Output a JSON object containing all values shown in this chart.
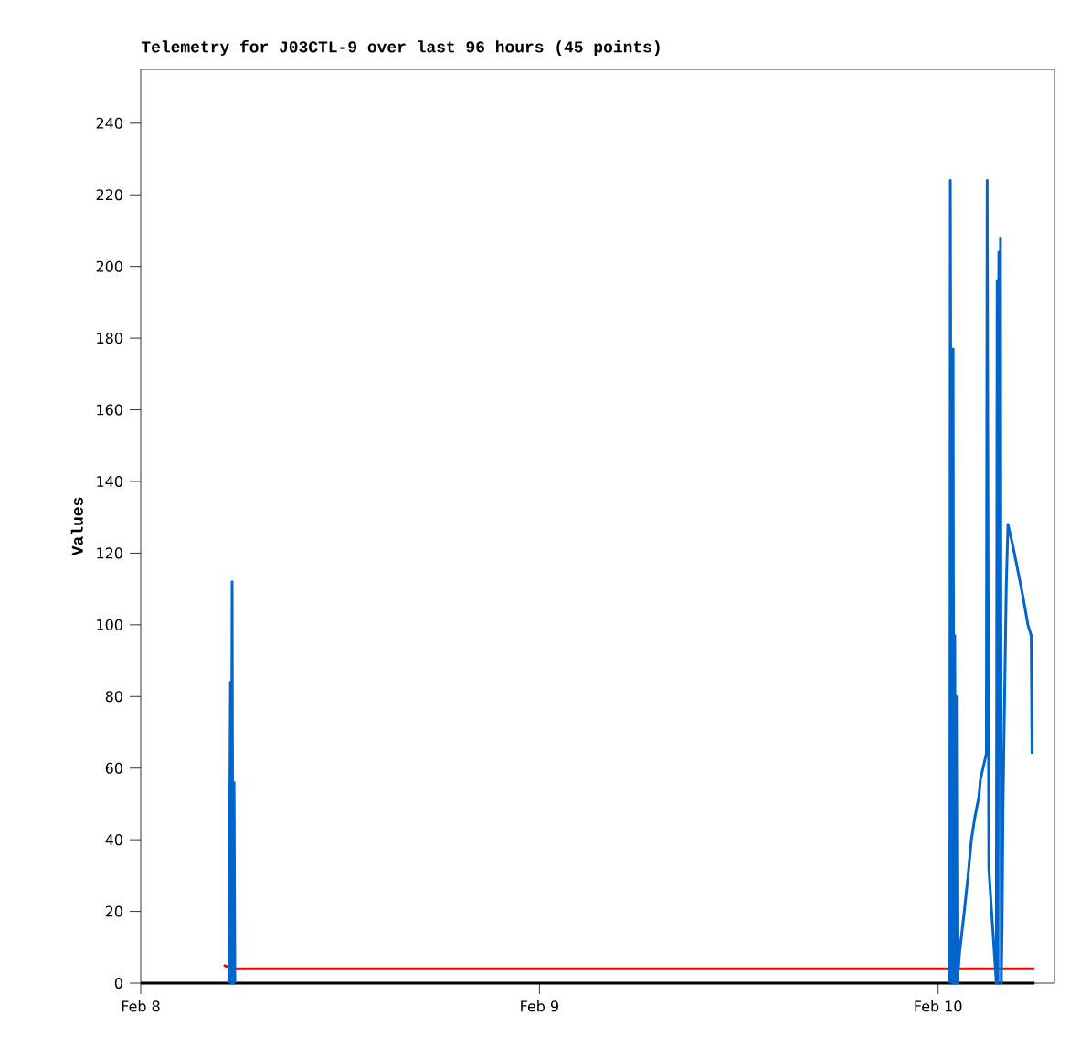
{
  "chart_data": {
    "type": "line",
    "title": "Telemetry for J03CTL-9 over last 96 hours (45 points)",
    "ylabel": "Values",
    "xlim": [
      "--02-08T00:00",
      "--02-10T07:00"
    ],
    "ylim": [
      0,
      255
    ],
    "xticks": [
      {
        "value": "--02-08",
        "label": "Feb 8"
      },
      {
        "value": "--02-09",
        "label": "Feb 9"
      },
      {
        "value": "--02-10",
        "label": "Feb 10"
      }
    ],
    "yticks": [
      0,
      20,
      40,
      60,
      80,
      100,
      120,
      140,
      160,
      180,
      200,
      220,
      240
    ],
    "grid": false,
    "legend": false,
    "series": [
      {
        "color": "#000000",
        "x": [
          "--02-08T00:00",
          "--02-10T05:48"
        ],
        "values": [
          0,
          0
        ]
      },
      {
        "color": "#ff0000",
        "x": [
          "--02-08T05:00",
          "--02-08T05:30",
          "--02-10T05:48"
        ],
        "values": [
          5,
          4,
          4
        ]
      },
      {
        "color": "#0066cc",
        "x": [
          "--02-08T05:18",
          "--02-08T05:20",
          "--02-08T05:24",
          "--02-08T05:27",
          "--02-08T05:30",
          "--02-08T05:33",
          "--02-08T05:37",
          "--02-08T05:40",
          "--02-09T03:00",
          "--02-10T00:42",
          "--02-10T00:44",
          "--02-10T00:47",
          "--02-10T00:51",
          "--02-10T00:54",
          "--02-10T00:57",
          "--02-10T01:00",
          "--02-10T01:03",
          "--02-10T01:06",
          "--02-10T01:09",
          "--02-10T01:18",
          "--02-10T01:33",
          "--02-10T01:48",
          "--02-10T02:00",
          "--02-10T02:12",
          "--02-10T02:27",
          "--02-10T02:33",
          "--02-10T02:45",
          "--02-10T02:54",
          "--02-10T02:57",
          "--02-10T03:03",
          "--02-10T03:30",
          "--02-10T03:33",
          "--02-10T03:36",
          "--02-10T03:39",
          "--02-10T03:42",
          "--02-10T03:45",
          "--02-10T03:48",
          "--02-10T03:51",
          "--02-10T03:54",
          "--02-10T04:00",
          "--02-10T04:06",
          "--02-10T04:12",
          "--02-10T04:30",
          "--02-10T04:48",
          "--02-10T05:06",
          "--02-10T05:24",
          "--02-10T05:36",
          "--02-10T05:39"
        ],
        "values": [
          0,
          28,
          84,
          0,
          112,
          0,
          56,
          0,
          null,
          0,
          224,
          113,
          0,
          177,
          0,
          97,
          0,
          80,
          0,
          9,
          19,
          30,
          40,
          46,
          52,
          57,
          61,
          64,
          224,
          32,
          0,
          196,
          0,
          204,
          104,
          208,
          0,
          16,
          48,
          80,
          111,
          128,
          122,
          115,
          108,
          100,
          97,
          64
        ]
      }
    ]
  }
}
